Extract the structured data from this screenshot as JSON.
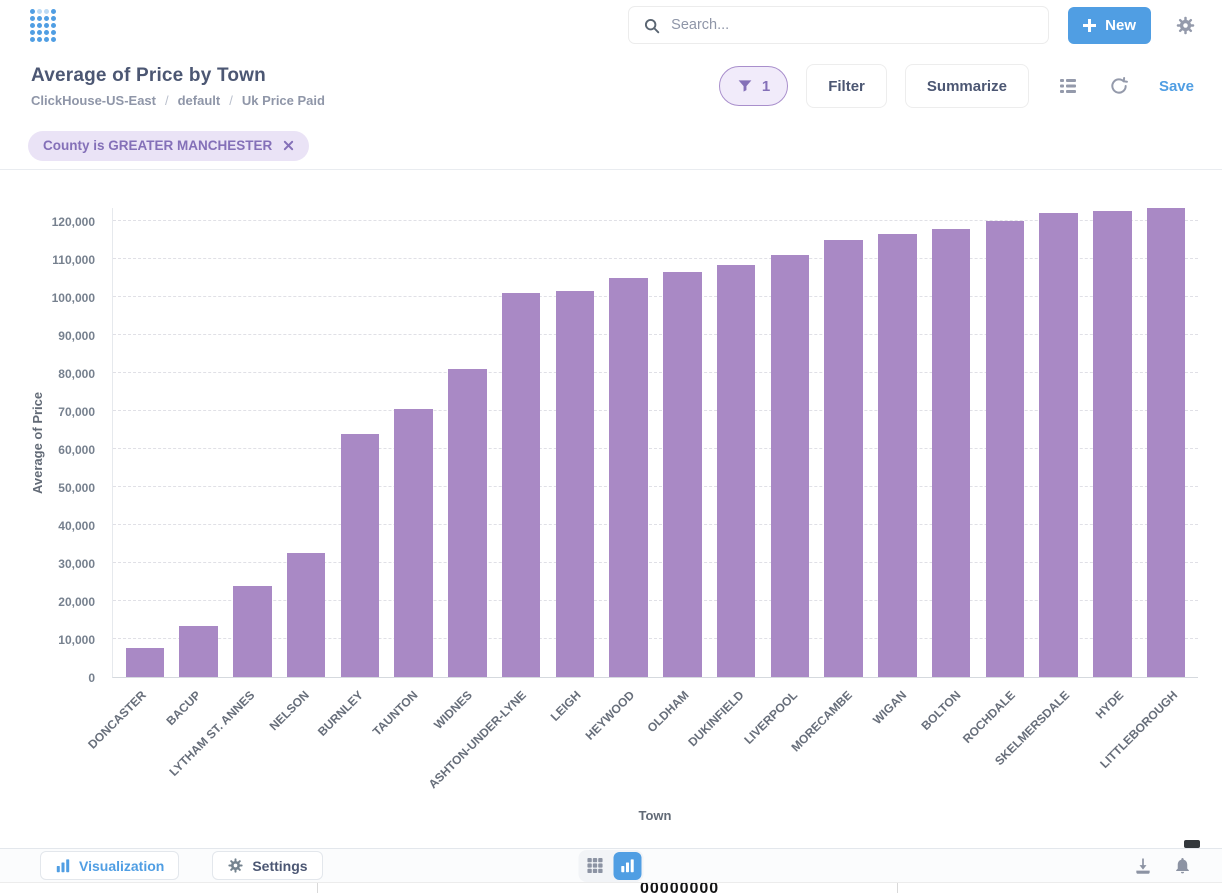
{
  "header": {
    "search_placeholder": "Search...",
    "new_label": "New"
  },
  "title": {
    "text": "Average of Price by Town",
    "breadcrumb": [
      "ClickHouse-US-East",
      "default",
      "Uk Price Paid"
    ],
    "separator": "/"
  },
  "actions": {
    "filter_count": "1",
    "filter_label": "Filter",
    "summarize_label": "Summarize",
    "save_label": "Save"
  },
  "filter_chip": {
    "label": "County is GREATER MANCHESTER"
  },
  "chart_data": {
    "type": "bar",
    "title": "Average of Price by Town",
    "xlabel": "Town",
    "ylabel": "Average of Price",
    "ylim": [
      0,
      125000
    ],
    "grid": true,
    "legend": "none",
    "bar_color": "#a989c5",
    "categories": [
      "DONCASTER",
      "BACUP",
      "LYTHAM ST. ANNES",
      "NELSON",
      "BURNLEY",
      "TAUNTON",
      "WIDNES",
      "ASHTON-UNDER-LYNE",
      "LEIGH",
      "HEYWOOD",
      "OLDHAM",
      "DUKINFIELD",
      "LIVERPOOL",
      "MORECAMBE",
      "WIGAN",
      "BOLTON",
      "ROCHDALE",
      "SKELMERSDALE",
      "HYDE",
      "LITTLEBOROUGH"
    ],
    "values": [
      7500,
      13500,
      24000,
      32500,
      64000,
      70500,
      81000,
      101000,
      101500,
      105000,
      106500,
      108500,
      111000,
      115000,
      116500,
      118000,
      120000,
      122000,
      122500,
      123500
    ],
    "y_ticks": [
      {
        "value": 0,
        "label": "0"
      },
      {
        "value": 10000,
        "label": "10,000"
      },
      {
        "value": 20000,
        "label": "20,000"
      },
      {
        "value": 30000,
        "label": "30,000"
      },
      {
        "value": 40000,
        "label": "40,000"
      },
      {
        "value": 50000,
        "label": "50,000"
      },
      {
        "value": 60000,
        "label": "60,000"
      },
      {
        "value": 70000,
        "label": "70,000"
      },
      {
        "value": 80000,
        "label": "80,000"
      },
      {
        "value": 90000,
        "label": "90,000"
      },
      {
        "value": 100000,
        "label": "100,000"
      },
      {
        "value": 110000,
        "label": "110,000"
      },
      {
        "value": 120000,
        "label": "120,000"
      }
    ]
  },
  "footer": {
    "visualization_label": "Visualization",
    "settings_label": "Settings"
  },
  "fragment": {
    "text": "00000000"
  },
  "colors": {
    "accent": "#509ee3",
    "bar": "#a989c5",
    "chip_bg": "#eae3f6",
    "chip_text": "#8470b8"
  }
}
